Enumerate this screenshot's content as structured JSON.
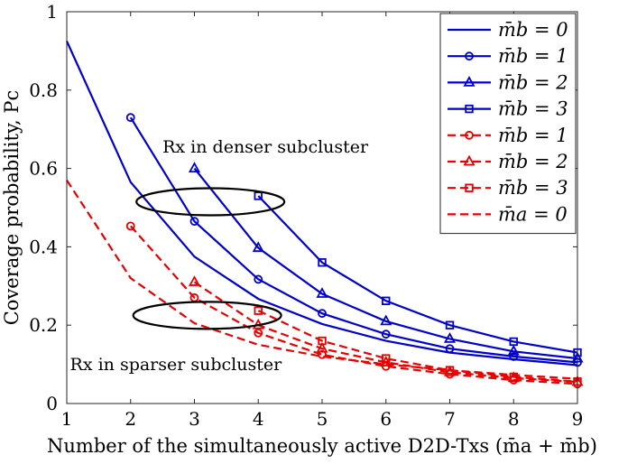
{
  "chart_data": {
    "type": "line",
    "title": "",
    "xlabel": "Number of the simultaneously active D2D-Txs (m̄a + m̄b)",
    "ylabel": "Coverage probability, Pc",
    "xlim": [
      1,
      9
    ],
    "ylim": [
      0,
      1
    ],
    "x_ticks": [
      "1",
      "2",
      "3",
      "4",
      "5",
      "6",
      "7",
      "8",
      "9"
    ],
    "y_ticks": [
      "0",
      "0.2",
      "0.4",
      "0.6",
      "0.8",
      "1"
    ],
    "grid": false,
    "legend_position": "top-right",
    "series": [
      {
        "name": "m̄b = 0",
        "color": "#0000cc",
        "dash": "solid",
        "marker": "none",
        "x": [
          1,
          2,
          3,
          4,
          5,
          6,
          7,
          8,
          9
        ],
        "y": [
          0.925,
          0.565,
          0.375,
          0.267,
          0.203,
          0.16,
          0.13,
          0.113,
          0.098
        ]
      },
      {
        "name": "m̄b = 1",
        "color": "#0000cc",
        "dash": "solid",
        "marker": "circle",
        "x": [
          2,
          3,
          4,
          5,
          6,
          7,
          8,
          9
        ],
        "y": [
          0.73,
          0.465,
          0.317,
          0.23,
          0.177,
          0.14,
          0.12,
          0.105
        ]
      },
      {
        "name": "m̄b = 2",
        "color": "#0000cc",
        "dash": "solid",
        "marker": "triangle",
        "x": [
          3,
          4,
          5,
          6,
          7,
          8,
          9
        ],
        "y": [
          0.6,
          0.397,
          0.28,
          0.21,
          0.165,
          0.133,
          0.115
        ]
      },
      {
        "name": "m̄b = 3",
        "color": "#0000cc",
        "dash": "solid",
        "marker": "square",
        "x": [
          4,
          5,
          6,
          7,
          8,
          9
        ],
        "y": [
          0.53,
          0.36,
          0.262,
          0.2,
          0.158,
          0.13
        ]
      },
      {
        "name": "m̄b = 1",
        "color": "#e60000",
        "dash": "dashed",
        "marker": "circle",
        "x": [
          2,
          3,
          4,
          5,
          6,
          7,
          8,
          9
        ],
        "y": [
          0.453,
          0.27,
          0.18,
          0.125,
          0.095,
          0.075,
          0.06,
          0.05
        ]
      },
      {
        "name": "m̄b = 2",
        "color": "#e60000",
        "dash": "dashed",
        "marker": "triangle",
        "x": [
          3,
          4,
          5,
          6,
          7,
          8,
          9
        ],
        "y": [
          0.31,
          0.2,
          0.14,
          0.105,
          0.08,
          0.065,
          0.055
        ]
      },
      {
        "name": "m̄b = 3",
        "color": "#e60000",
        "dash": "dashed",
        "marker": "square",
        "x": [
          4,
          5,
          6,
          7,
          8,
          9
        ],
        "y": [
          0.237,
          0.16,
          0.115,
          0.085,
          0.068,
          0.056
        ]
      },
      {
        "name": "m̄a = 0",
        "color": "#e60000",
        "dash": "dashed",
        "marker": "none",
        "x": [
          1,
          2,
          3,
          4,
          5,
          6,
          7,
          8,
          9
        ],
        "y": [
          0.57,
          0.32,
          0.205,
          0.15,
          0.12,
          0.1,
          0.085,
          0.073,
          0.063
        ]
      }
    ],
    "annotations": [
      {
        "text": "Rx in denser subcluster",
        "ellipse_center": [
          3.25,
          0.515
        ],
        "text_anchor": [
          2.5,
          0.64
        ]
      },
      {
        "text": "Rx in sparser subcluster",
        "ellipse_center": [
          3.2,
          0.225
        ],
        "text_anchor": [
          1.05,
          0.085
        ]
      }
    ]
  }
}
